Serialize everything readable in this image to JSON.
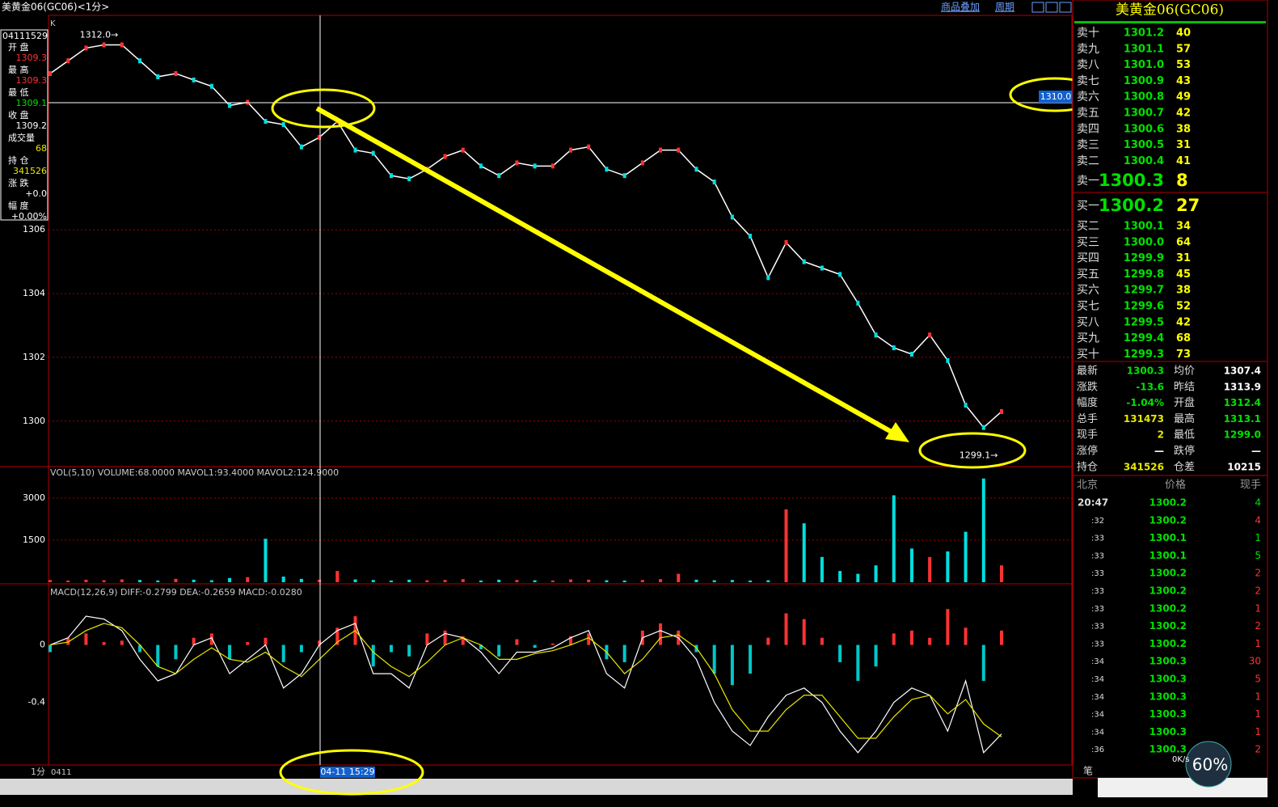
{
  "title_bar": {
    "title": "美黄金06(GC06)<1分>",
    "buttons": [
      "商品叠加",
      "周期"
    ]
  },
  "chart_data": [
    {
      "type": "line",
      "label": "K",
      "color": "#ffffff",
      "ylim": [
        1298.6,
        1312.7
      ],
      "yticks": [
        1300,
        1302,
        1304,
        1306
      ],
      "grid": true,
      "annotations": [
        "1312.0→",
        "1299.1→"
      ],
      "values": [
        1310.9,
        1311.3,
        1311.7,
        1311.8,
        1311.8,
        1311.3,
        1310.8,
        1310.9,
        1310.7,
        1310.5,
        1309.9,
        1310.0,
        1309.4,
        1309.3,
        1308.6,
        1308.9,
        1309.4,
        1308.5,
        1308.4,
        1307.7,
        1307.6,
        1307.9,
        1308.3,
        1308.5,
        1308.0,
        1307.7,
        1308.1,
        1308.0,
        1308.0,
        1308.5,
        1308.6,
        1307.9,
        1307.7,
        1308.1,
        1308.5,
        1308.5,
        1307.9,
        1307.5,
        1306.4,
        1305.8,
        1304.5,
        1305.6,
        1305.0,
        1304.8,
        1304.6,
        1303.7,
        1302.7,
        1302.3,
        1302.1,
        1302.7,
        1301.9,
        1300.5,
        1299.8,
        1300.3
      ]
    },
    {
      "type": "bar",
      "title": "VOL(5,10) VOLUME:68.0000 MAVOL1:93.4000 MAVOL2:124.9000",
      "ylim": [
        0,
        4125
      ],
      "yticks": [
        1500,
        3000
      ],
      "grid": true,
      "colors": [
        "#ff3232",
        "#00e0e0"
      ],
      "values": [
        80,
        60,
        90,
        70,
        100,
        80,
        60,
        120,
        90,
        70,
        150,
        180,
        1550,
        200,
        120,
        90,
        400,
        100,
        80,
        60,
        90,
        70,
        80,
        110,
        60,
        90,
        80,
        70,
        60,
        100,
        90,
        70,
        60,
        80,
        110,
        300,
        90,
        70,
        80,
        60,
        70,
        2600,
        2100,
        900,
        400,
        300,
        600,
        3100,
        1200,
        900,
        1100,
        1800,
        3700,
        600
      ]
    },
    {
      "type": "macd",
      "title": "MACD(12,26,9) DIFF:-0.2799 DEA:-0.2659 MACD:-0.0280",
      "ylim": [
        -0.83,
        0.42
      ],
      "yticks": [
        -0.4,
        0
      ],
      "colors": [
        "#ff3232",
        "#00c8c8"
      ],
      "histogram": [
        -0.05,
        0.05,
        0.08,
        0.02,
        0.03,
        -0.05,
        -0.15,
        -0.1,
        0.05,
        0.08,
        -0.1,
        0.02,
        0.05,
        -0.12,
        -0.05,
        0.03,
        0.12,
        0.2,
        -0.15,
        -0.05,
        -0.08,
        0.08,
        0.1,
        0.06,
        -0.03,
        -0.08,
        0.04,
        -0.02,
        0.01,
        0.06,
        0.08,
        -0.1,
        -0.12,
        0.1,
        0.15,
        0.1,
        -0.05,
        -0.2,
        -0.28,
        -0.2,
        0.05,
        0.22,
        0.18,
        0.05,
        -0.12,
        -0.25,
        -0.15,
        0.08,
        0.1,
        0.05,
        0.25,
        0.12,
        -0.25,
        0.1
      ],
      "series": [
        {
          "color": "#ffffff",
          "values": [
            0,
            0.05,
            0.2,
            0.18,
            0.1,
            -0.1,
            -0.25,
            -0.2,
            0.0,
            0.05,
            -0.2,
            -0.1,
            0.0,
            -0.3,
            -0.2,
            0.0,
            0.1,
            0.15,
            -0.2,
            -0.2,
            -0.3,
            0.0,
            0.08,
            0.05,
            -0.05,
            -0.2,
            -0.05,
            -0.05,
            -0.02,
            0.05,
            0.1,
            -0.2,
            -0.3,
            0.05,
            0.1,
            0.05,
            -0.1,
            -0.4,
            -0.6,
            -0.7,
            -0.5,
            -0.35,
            -0.3,
            -0.4,
            -0.6,
            -0.75,
            -0.6,
            -0.4,
            -0.3,
            -0.35,
            -0.6,
            -0.25,
            -0.75,
            -0.62
          ]
        },
        {
          "color": "#e8e800",
          "values": [
            0,
            0.02,
            0.1,
            0.15,
            0.12,
            0.0,
            -0.15,
            -0.2,
            -0.1,
            -0.02,
            -0.1,
            -0.12,
            -0.05,
            -0.15,
            -0.22,
            -0.1,
            0.02,
            0.1,
            -0.05,
            -0.15,
            -0.22,
            -0.12,
            0.0,
            0.05,
            0.0,
            -0.1,
            -0.1,
            -0.06,
            -0.04,
            0.0,
            0.05,
            -0.05,
            -0.2,
            -0.1,
            0.05,
            0.07,
            -0.02,
            -0.2,
            -0.45,
            -0.6,
            -0.6,
            -0.45,
            -0.35,
            -0.35,
            -0.5,
            -0.65,
            -0.65,
            -0.5,
            -0.38,
            -0.35,
            -0.48,
            -0.38,
            -0.55,
            -0.64
          ]
        }
      ]
    }
  ],
  "cursor": {
    "price_label": "1310.0",
    "time_label": "04-11 15:29"
  },
  "info_box": {
    "time": "04111529",
    "rows": [
      {
        "label": "开 盘",
        "value": "1309.3",
        "color": "#ff3232"
      },
      {
        "label": "最 高",
        "value": "1309.3",
        "color": "#ff3232"
      },
      {
        "label": "最 低",
        "value": "1309.1",
        "color": "#00e000"
      },
      {
        "label": "收 盘",
        "value": "1309.2",
        "color": "#ffffff"
      },
      {
        "label": "成交量",
        "value": "68",
        "color": "#e8e800"
      },
      {
        "label": "持 仓",
        "value": "341526",
        "color": "#e8e800"
      },
      {
        "label": "涨 跌",
        "value": "+0.0",
        "color": "#ffffff"
      },
      {
        "label": "幅 度",
        "value": "+0.00%",
        "color": "#ffffff"
      }
    ]
  },
  "bottom_axis": {
    "period": "1分",
    "date": "0411"
  },
  "quote": {
    "title": "美黄金06(GC06)",
    "asks": [
      {
        "label": "卖十",
        "price": "1301.2",
        "size": "40"
      },
      {
        "label": "卖九",
        "price": "1301.1",
        "size": "57"
      },
      {
        "label": "卖八",
        "price": "1301.0",
        "size": "53"
      },
      {
        "label": "卖七",
        "price": "1300.9",
        "size": "43"
      },
      {
        "label": "卖六",
        "price": "1300.8",
        "size": "49"
      },
      {
        "label": "卖五",
        "price": "1300.7",
        "size": "42"
      },
      {
        "label": "卖四",
        "price": "1300.6",
        "size": "38"
      },
      {
        "label": "卖三",
        "price": "1300.5",
        "size": "31"
      },
      {
        "label": "卖二",
        "price": "1300.4",
        "size": "41"
      },
      {
        "label": "卖一",
        "price": "1300.3",
        "size": "8"
      }
    ],
    "bids": [
      {
        "label": "买一",
        "price": "1300.2",
        "size": "27"
      },
      {
        "label": "买二",
        "price": "1300.1",
        "size": "34"
      },
      {
        "label": "买三",
        "price": "1300.0",
        "size": "64"
      },
      {
        "label": "买四",
        "price": "1299.9",
        "size": "31"
      },
      {
        "label": "买五",
        "price": "1299.8",
        "size": "45"
      },
      {
        "label": "买六",
        "price": "1299.7",
        "size": "38"
      },
      {
        "label": "买七",
        "price": "1299.6",
        "size": "52"
      },
      {
        "label": "买八",
        "price": "1299.5",
        "size": "42"
      },
      {
        "label": "买九",
        "price": "1299.4",
        "size": "68"
      },
      {
        "label": "买十",
        "price": "1299.3",
        "size": "73"
      }
    ],
    "stats": [
      [
        {
          "label": "最新",
          "value": "1300.3",
          "color": "#00e000"
        },
        {
          "label": "均价",
          "value": "1307.4",
          "color": "#ffffff"
        }
      ],
      [
        {
          "label": "涨跌",
          "value": "-13.6",
          "color": "#00e000"
        },
        {
          "label": "昨结",
          "value": "1313.9",
          "color": "#ffffff"
        }
      ],
      [
        {
          "label": "幅度",
          "value": "-1.04%",
          "color": "#00e000"
        },
        {
          "label": "开盘",
          "value": "1312.4",
          "color": "#00e000"
        }
      ],
      [
        {
          "label": "总手",
          "value": "131473",
          "color": "#e8e800"
        },
        {
          "label": "最高",
          "value": "1313.1",
          "color": "#00e000"
        }
      ],
      [
        {
          "label": "现手",
          "value": "2",
          "color": "#e8e800"
        },
        {
          "label": "最低",
          "value": "1299.0",
          "color": "#00e000"
        }
      ],
      [
        {
          "label": "涨停",
          "value": "—",
          "color": "#ffffff"
        },
        {
          "label": "跌停",
          "value": "—",
          "color": "#ffffff"
        }
      ],
      [
        {
          "label": "持仓",
          "value": "341526",
          "color": "#e8e800"
        },
        {
          "label": "仓差",
          "value": "10215",
          "color": "#ffffff"
        }
      ]
    ],
    "trades_header": [
      "北京",
      "价格",
      "现手"
    ],
    "trades": [
      {
        "time": "20:47",
        "price": "1300.2",
        "size": "4",
        "color": "#00e000"
      },
      {
        "time": ":32",
        "price": "1300.2",
        "size": "4",
        "color": "#ff3232"
      },
      {
        "time": ":33",
        "price": "1300.1",
        "size": "1",
        "color": "#00e000"
      },
      {
        "time": ":33",
        "price": "1300.1",
        "size": "5",
        "color": "#00e000"
      },
      {
        "time": ":33",
        "price": "1300.2",
        "size": "2",
        "color": "#ff3232"
      },
      {
        "time": ":33",
        "price": "1300.2",
        "size": "2",
        "color": "#ff3232"
      },
      {
        "time": ":33",
        "price": "1300.2",
        "size": "1",
        "color": "#ff3232"
      },
      {
        "time": ":33",
        "price": "1300.2",
        "size": "2",
        "color": "#ff3232"
      },
      {
        "time": ":33",
        "price": "1300.2",
        "size": "1",
        "color": "#ff3232"
      },
      {
        "time": ":34",
        "price": "1300.3",
        "size": "30",
        "color": "#ff3232"
      },
      {
        "time": ":34",
        "price": "1300.3",
        "size": "5",
        "color": "#ff3232"
      },
      {
        "time": ":34",
        "price": "1300.3",
        "size": "1",
        "color": "#ff3232"
      },
      {
        "time": ":34",
        "price": "1300.3",
        "size": "1",
        "color": "#ff3232"
      },
      {
        "time": ":34",
        "price": "1300.3",
        "size": "1",
        "color": "#ff3232"
      },
      {
        "time": ":36",
        "price": "1300.3",
        "size": "2",
        "color": "#ff3232"
      }
    ],
    "footer_label": "笔"
  },
  "widget": {
    "speed": "0K/s",
    "percent": "60%"
  }
}
